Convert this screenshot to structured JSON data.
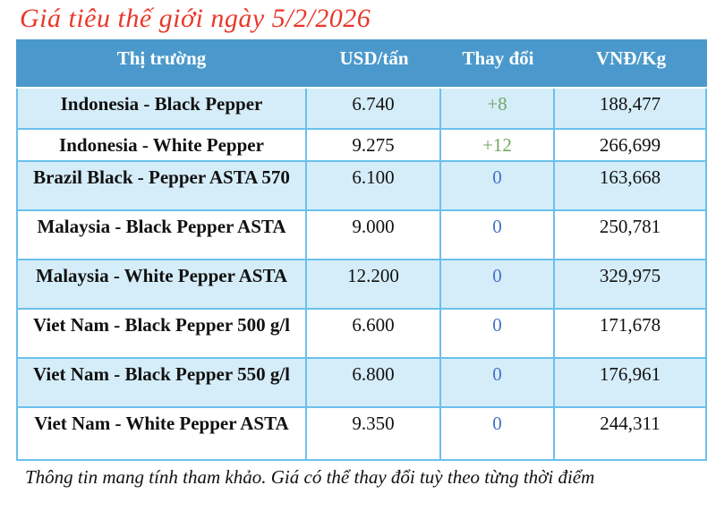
{
  "title": "Giá tiêu thế giới ngày 5/2/2026",
  "footer": "Thông tin mang tính tham khảo. Giá có thể thay đổi tuỳ theo từng thời điểm",
  "colors": {
    "title_red": "#e9382b",
    "header_bg": "#4b99cc",
    "row_alt_bg": "#d5edf9",
    "cell_border": "#6ac0ec",
    "change_positive": "#76a465",
    "change_zero": "#4472c4"
  },
  "table": {
    "headers": [
      "Thị trường",
      "USD/tấn",
      "Thay đổi",
      "VNĐ/Kg"
    ],
    "rows": [
      {
        "market": "Indonesia - Black Pepper",
        "usd": "6.740",
        "change": "+8",
        "change_dir": "up",
        "vnd": "188,477"
      },
      {
        "market": "Indonesia - White Pepper",
        "usd": "9.275",
        "change": "+12",
        "change_dir": "up",
        "vnd": "266,699"
      },
      {
        "market": "Brazil Black - Pepper ASTA 570",
        "usd": "6.100",
        "change": "0",
        "change_dir": "zero",
        "vnd": "163,668"
      },
      {
        "market": "Malaysia - Black Pepper ASTA",
        "usd": "9.000",
        "change": "0",
        "change_dir": "zero",
        "vnd": "250,781"
      },
      {
        "market": "Malaysia - White Pepper ASTA",
        "usd": "12.200",
        "change": "0",
        "change_dir": "zero",
        "vnd": "329,975"
      },
      {
        "market": "Viet Nam - Black Pepper 500 g/l",
        "usd": "6.600",
        "change": "0",
        "change_dir": "zero",
        "vnd": "171,678"
      },
      {
        "market": "Viet Nam - Black Pepper 550 g/l",
        "usd": "6.800",
        "change": "0",
        "change_dir": "zero",
        "vnd": "176,961"
      },
      {
        "market": "Viet Nam - White Pepper ASTA",
        "usd": "9.350",
        "change": "0",
        "change_dir": "zero",
        "vnd": "244,311"
      }
    ]
  }
}
